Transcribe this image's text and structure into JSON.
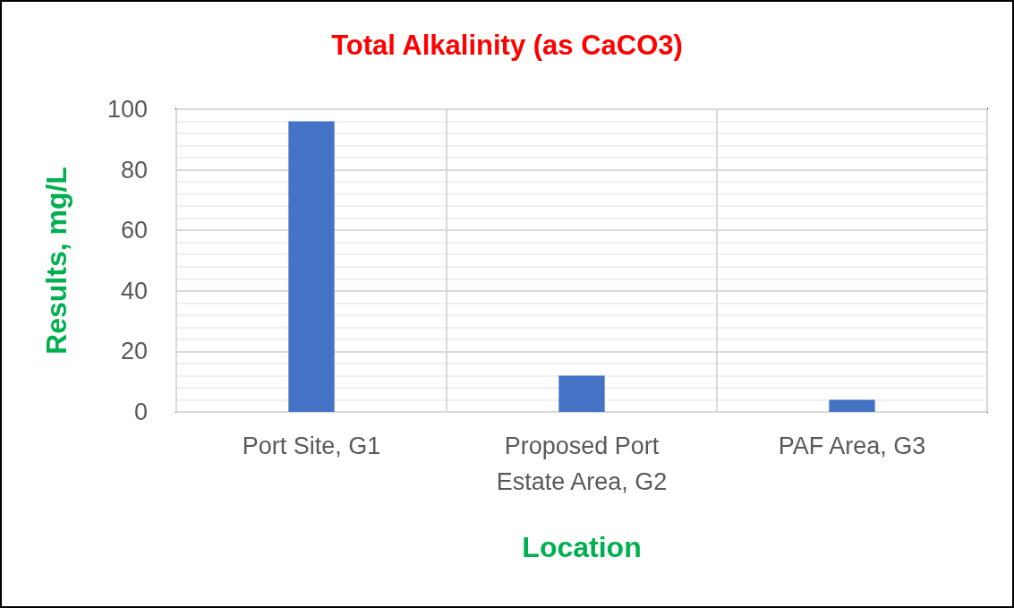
{
  "chart_data": {
    "type": "bar",
    "title": "Total Alkalinity (as CaCO3)",
    "xlabel": "Location",
    "ylabel": "Results, mg/L",
    "categories": [
      "Port Site, G1",
      "Proposed Port\nEstate Area, G2",
      "PAF Area, G3"
    ],
    "values": [
      96,
      12,
      4
    ],
    "color": "#4472c4",
    "ylim": [
      0,
      100
    ],
    "yticks": [
      0,
      20,
      40,
      60,
      80,
      100
    ],
    "grid": true
  }
}
